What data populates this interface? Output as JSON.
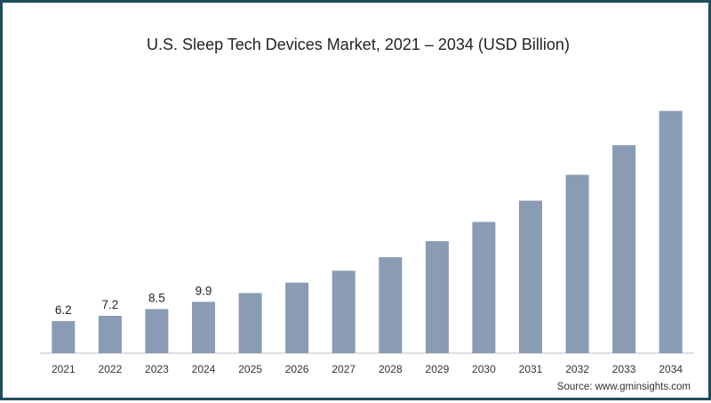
{
  "chart_data": {
    "type": "bar",
    "title": "U.S. Sleep Tech Devices Market, 2021 – 2034 (USD Billion)",
    "categories": [
      "2021",
      "2022",
      "2023",
      "2024",
      "2025",
      "2026",
      "2027",
      "2028",
      "2029",
      "2030",
      "2031",
      "2032",
      "2033",
      "2034"
    ],
    "values": [
      6.2,
      7.2,
      8.5,
      9.9,
      11.6,
      13.6,
      15.9,
      18.5,
      21.6,
      25.3,
      29.4,
      34.4,
      40.1,
      46.7
    ],
    "data_labels": [
      "6.2",
      "7.2",
      "8.5",
      "9.9",
      "",
      "",
      "",
      "",
      "",
      "",
      "",
      "",
      "",
      ""
    ],
    "xlabel": "",
    "ylabel": "",
    "ylim": [
      0,
      47
    ],
    "grid": false,
    "bar_color": "#8a9bb4",
    "axis_color": "#bfbfbf"
  },
  "source": "Source: www.gminsights.com"
}
